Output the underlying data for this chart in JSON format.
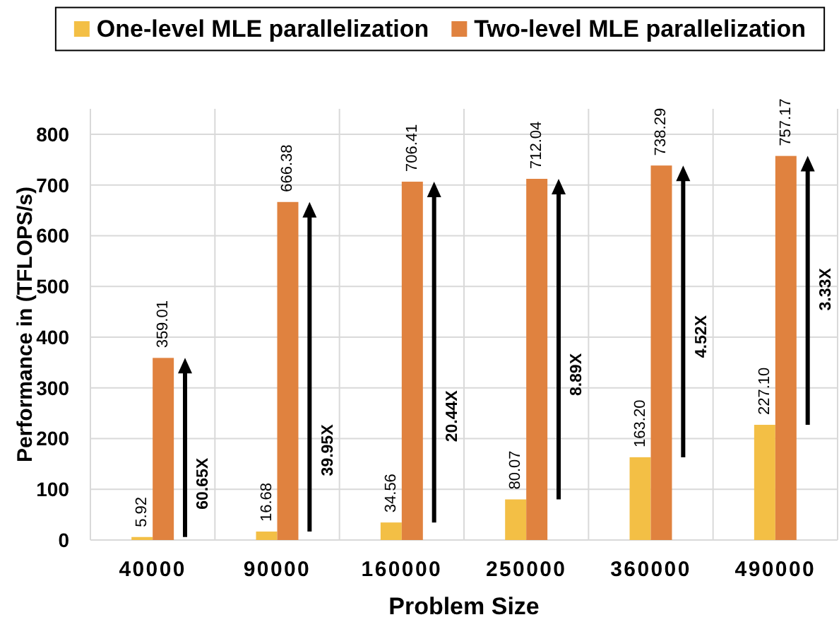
{
  "chart_data": {
    "type": "bar",
    "categories": [
      "40000",
      "90000",
      "160000",
      "250000",
      "360000",
      "490000"
    ],
    "series": [
      {
        "name": "One-level MLE parallelization",
        "color": "#f3bf45",
        "values": [
          5.92,
          16.68,
          34.56,
          80.07,
          163.2,
          227.1
        ],
        "value_labels": [
          "5.92",
          "16.68",
          "34.56",
          "80.07",
          "163.20",
          "227.10"
        ]
      },
      {
        "name": "Two-level MLE parallelization",
        "color": "#e0823f",
        "values": [
          359.01,
          666.38,
          706.41,
          712.04,
          738.29,
          757.17
        ],
        "value_labels": [
          "359.01",
          "666.38",
          "706.41",
          "712.04",
          "738.29",
          "757.17"
        ]
      }
    ],
    "xlabel": "Problem Size",
    "ylabel": "Performance in (TFLOPS/s)",
    "ylim": [
      0,
      850
    ],
    "yticks": [
      0,
      100,
      200,
      300,
      400,
      500,
      600,
      700,
      800
    ],
    "grid": true,
    "legend": "top",
    "annotations": [
      {
        "text": "60.65X",
        "x": "40000",
        "y": 111
      },
      {
        "text": "39.95X",
        "x": "90000",
        "y": 177
      },
      {
        "text": "20.44X",
        "x": "160000",
        "y": 244
      },
      {
        "text": "8.89X",
        "x": "250000",
        "y": 326
      },
      {
        "text": "4.52X",
        "x": "360000",
        "y": 401
      },
      {
        "text": "3.33X",
        "x": "490000",
        "y": 494
      }
    ]
  }
}
